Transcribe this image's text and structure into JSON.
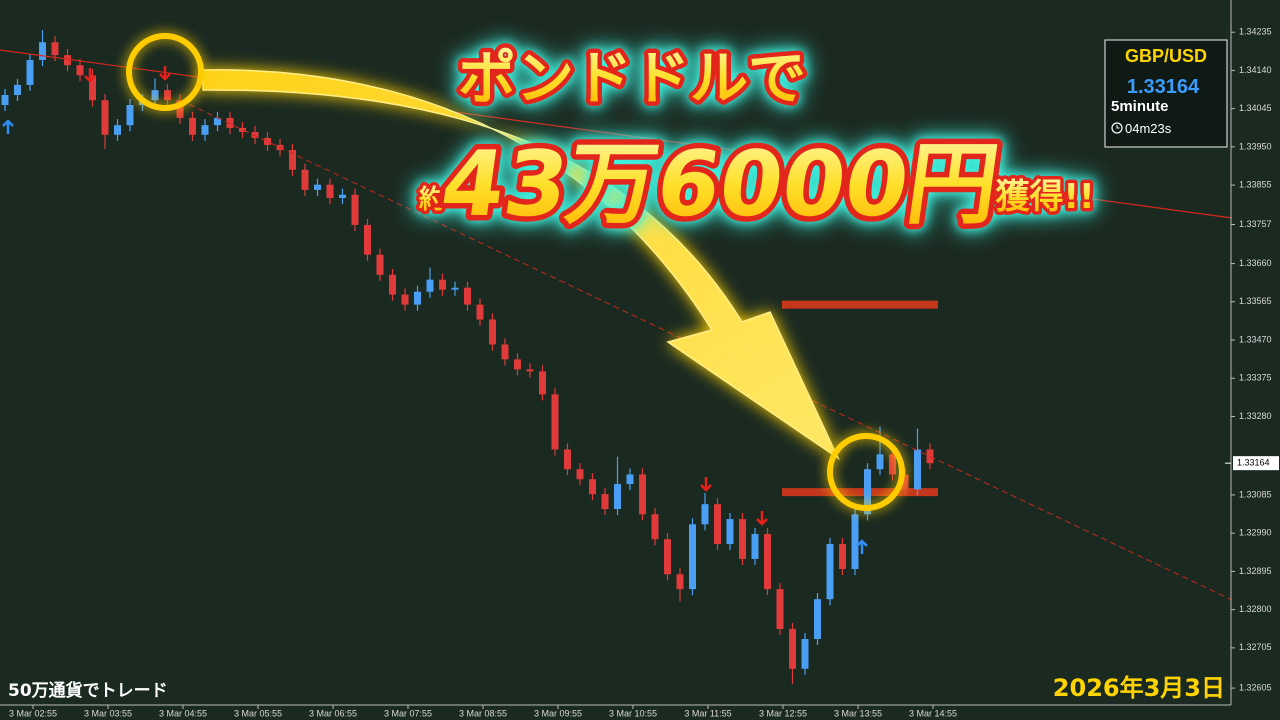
{
  "chart_data": {
    "type": "candlestick",
    "background": "#1b2a21",
    "up_color": "#4a9ff5",
    "down_color": "#e03a3a",
    "ylim": [
      1.32563,
      1.34315
    ],
    "yticks": [
      1.34235,
      {
        "value": 1.3414,
        "label": "1.34140"
      },
      1.34045,
      {
        "value": 1.3395,
        "label": "1.33950"
      },
      1.33855,
      1.33757,
      {
        "value": 1.3366,
        "label": "1.33660"
      },
      1.33565,
      {
        "value": 1.3347,
        "label": "1.33470"
      },
      1.33375,
      {
        "value": 1.3328,
        "label": "1.33280"
      },
      1.33085,
      {
        "value": 1.3299,
        "label": "1.32990"
      },
      1.32895,
      {
        "value": 1.328,
        "label": "1.32800"
      },
      1.32705,
      1.32605
    ],
    "xtick_labels": [
      "3 Mar 02:55",
      "3 Mar 03:55",
      "3 Mar 04:55",
      "3 Mar 05:55",
      "3 Mar 06:55",
      "3 Mar 07:55",
      "3 Mar 08:55",
      "3 Mar 09:55",
      "3 Mar 10:55",
      "3 Mar 11:55",
      "3 Mar 12:55",
      "3 Mar 13:55",
      "3 Mar 14:55"
    ],
    "candles": {
      "open": [
        1.34054,
        1.34079,
        1.34104,
        1.34166,
        1.3421,
        1.34178,
        1.34153,
        1.34128,
        1.34066,
        1.3398,
        1.34004,
        1.34054,
        1.34066,
        1.34091,
        1.34066,
        1.34022,
        1.3398,
        1.34004,
        1.34022,
        1.33997,
        1.33987,
        1.33972,
        1.33955,
        1.33942,
        1.33893,
        1.33843,
        1.33856,
        1.33823,
        1.33831,
        1.33756,
        1.33682,
        1.33632,
        1.33583,
        1.33558,
        1.3359,
        1.3362,
        1.33595,
        1.336,
        1.33558,
        1.33521,
        1.33459,
        1.33422,
        1.33397,
        1.33392,
        1.33335,
        1.33198,
        1.33149,
        1.33124,
        1.33087,
        1.3305,
        1.33112,
        1.33136,
        1.33037,
        1.32975,
        1.32888,
        1.32851,
        1.33012,
        1.33062,
        1.32963,
        1.33025,
        1.32926,
        1.32988,
        1.32851,
        1.32752,
        1.32653,
        1.32727,
        1.32826,
        1.32963,
        1.32901,
        1.33037,
        1.33149,
        1.33186,
        1.33136,
        1.33099,
        1.33198
      ],
      "high": [
        1.34094,
        1.34119,
        1.34181,
        1.3424,
        1.34225,
        1.34193,
        1.34168,
        1.34143,
        1.34081,
        1.34019,
        1.34069,
        1.34081,
        1.3412,
        1.34106,
        1.34081,
        1.34037,
        1.34019,
        1.34037,
        1.34037,
        1.34012,
        1.34002,
        1.33987,
        1.3397,
        1.33957,
        1.33908,
        1.33871,
        1.33871,
        1.33846,
        1.33846,
        1.33771,
        1.33697,
        1.33647,
        1.33598,
        1.33605,
        1.3365,
        1.33635,
        1.33615,
        1.33615,
        1.33573,
        1.33536,
        1.33474,
        1.33437,
        1.33412,
        1.33407,
        1.3335,
        1.33213,
        1.33164,
        1.33139,
        1.33102,
        1.3318,
        1.33151,
        1.33151,
        1.33052,
        1.3299,
        1.32903,
        1.33027,
        1.3309,
        1.33077,
        1.3304,
        1.3304,
        1.33003,
        1.33003,
        1.32866,
        1.32767,
        1.32742,
        1.32841,
        1.32978,
        1.32978,
        1.33052,
        1.33164,
        1.33255,
        1.33201,
        1.33151,
        1.3325,
        1.33213
      ],
      "low": [
        1.34039,
        1.34064,
        1.34089,
        1.34151,
        1.34163,
        1.34138,
        1.34113,
        1.34051,
        1.33945,
        1.33965,
        1.33989,
        1.34039,
        1.34051,
        1.34051,
        1.34007,
        1.33965,
        1.33965,
        1.33989,
        1.33982,
        1.33972,
        1.33957,
        1.3394,
        1.33927,
        1.33878,
        1.33828,
        1.33828,
        1.33808,
        1.33808,
        1.33741,
        1.33667,
        1.33617,
        1.33568,
        1.33543,
        1.33543,
        1.33575,
        1.3358,
        1.3358,
        1.33543,
        1.33506,
        1.33444,
        1.33407,
        1.33382,
        1.33377,
        1.3332,
        1.33183,
        1.33134,
        1.33109,
        1.33072,
        1.33035,
        1.33035,
        1.33097,
        1.33022,
        1.3296,
        1.32873,
        1.3282,
        1.32836,
        1.32997,
        1.32948,
        1.32948,
        1.32911,
        1.32911,
        1.32836,
        1.32737,
        1.32615,
        1.32638,
        1.32712,
        1.32811,
        1.32886,
        1.32886,
        1.33022,
        1.33134,
        1.33121,
        1.33084,
        1.33084,
        1.33149
      ],
      "close": [
        1.34079,
        1.34104,
        1.34166,
        1.3421,
        1.34178,
        1.34153,
        1.34128,
        1.34066,
        1.3398,
        1.34004,
        1.34054,
        1.34066,
        1.34091,
        1.34066,
        1.34022,
        1.3398,
        1.34004,
        1.34022,
        1.33997,
        1.33987,
        1.33972,
        1.33955,
        1.33942,
        1.33893,
        1.33843,
        1.33856,
        1.33823,
        1.33831,
        1.33756,
        1.33682,
        1.33632,
        1.33583,
        1.33558,
        1.3359,
        1.3362,
        1.33595,
        1.336,
        1.33558,
        1.33521,
        1.33459,
        1.33422,
        1.33397,
        1.33392,
        1.33335,
        1.33198,
        1.33149,
        1.33124,
        1.33087,
        1.3305,
        1.33112,
        1.33136,
        1.33037,
        1.32975,
        1.32888,
        1.32851,
        1.33012,
        1.33062,
        1.32963,
        1.33025,
        1.32926,
        1.32988,
        1.32851,
        1.32752,
        1.32653,
        1.32727,
        1.32826,
        1.32963,
        1.32901,
        1.33037,
        1.33149,
        1.33186,
        1.33136,
        1.33099,
        1.33198,
        1.33164
      ]
    },
    "levels": [
      1.33558,
      1.33092
    ],
    "level_color": "#d8391c",
    "current_price": 1.33164,
    "info": {
      "symbol": "GBP/USD",
      "price": 1.33164,
      "timeframe": "5minute",
      "countdown": "04m23s"
    },
    "headline": {
      "line1": "ポンドドルで",
      "prefix": "約",
      "amount": "43万6000円",
      "suffix": "獲得!!"
    },
    "footer_left": "50万通貨でトレード",
    "date": "2026年3月3日"
  }
}
